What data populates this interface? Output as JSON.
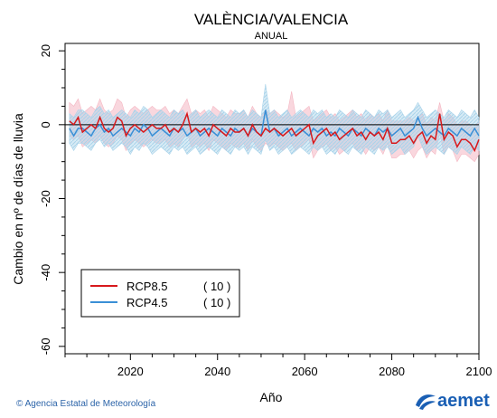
{
  "chart_data": {
    "type": "line",
    "title": "VALÈNCIA/VALENCIA",
    "subtitle": "ANUAL",
    "xlabel": "Año",
    "ylabel": "Cambio en nº de días de lluvia",
    "xlim": [
      2005,
      2100
    ],
    "ylim": [
      -62,
      22
    ],
    "xticks": [
      2020,
      2040,
      2060,
      2080,
      2100
    ],
    "yticks": [
      20,
      0,
      -20,
      -40,
      -60
    ],
    "zero_line": true,
    "legend_position": "lower-left",
    "series": [
      {
        "name": "RCP8.5",
        "count_label": "( 10 )",
        "color": "#d7191c",
        "band_color": "#f4b6c2",
        "x": [
          2006,
          2007,
          2008,
          2009,
          2010,
          2011,
          2012,
          2013,
          2014,
          2015,
          2016,
          2017,
          2018,
          2019,
          2020,
          2021,
          2022,
          2023,
          2024,
          2025,
          2026,
          2027,
          2028,
          2029,
          2030,
          2031,
          2032,
          2033,
          2034,
          2035,
          2036,
          2037,
          2038,
          2039,
          2040,
          2041,
          2042,
          2043,
          2044,
          2045,
          2046,
          2047,
          2048,
          2049,
          2050,
          2051,
          2052,
          2053,
          2054,
          2055,
          2056,
          2057,
          2058,
          2059,
          2060,
          2061,
          2062,
          2063,
          2064,
          2065,
          2066,
          2067,
          2068,
          2069,
          2070,
          2071,
          2072,
          2073,
          2074,
          2075,
          2076,
          2077,
          2078,
          2079,
          2080,
          2081,
          2082,
          2083,
          2084,
          2085,
          2086,
          2087,
          2088,
          2089,
          2090,
          2091,
          2092,
          2093,
          2094,
          2095,
          2096,
          2097,
          2098,
          2099,
          2100
        ],
        "y": [
          1,
          0,
          2,
          -2,
          -1,
          0,
          -1,
          2,
          -1,
          -2,
          -1,
          2,
          1,
          -3,
          -1,
          0,
          -1,
          -2,
          -1,
          0,
          -1,
          -1,
          0,
          -2,
          -1,
          -2,
          0,
          3,
          -2,
          -1,
          -2,
          -1,
          -3,
          0,
          -1,
          -2,
          -3,
          -1,
          -2,
          -2,
          -1,
          -3,
          0,
          -2,
          -3,
          -1,
          -2,
          -1,
          -2,
          -3,
          -2,
          -1,
          -3,
          -2,
          -1,
          0,
          -5,
          -3,
          -2,
          -1,
          -3,
          -2,
          -4,
          -3,
          -2,
          -1,
          -3,
          -2,
          -4,
          -2,
          -3,
          -2,
          -4,
          -1,
          -5,
          -5,
          -4,
          -4,
          -3,
          -5,
          -3,
          -2,
          -5,
          -3,
          -4,
          3,
          -4,
          -2,
          -3,
          -6,
          -4,
          -4,
          -5,
          -7,
          -4
        ],
        "y_min": [
          -3,
          -4,
          -3,
          -6,
          -5,
          -4,
          -5,
          -3,
          -5,
          -6,
          -5,
          -3,
          -4,
          -7,
          -5,
          -4,
          -5,
          -6,
          -5,
          -4,
          -5,
          -5,
          -4,
          -6,
          -5,
          -6,
          -4,
          -2,
          -6,
          -5,
          -6,
          -5,
          -7,
          -4,
          -5,
          -6,
          -7,
          -5,
          -6,
          -6,
          -5,
          -7,
          -4,
          -6,
          -7,
          -5,
          -6,
          -5,
          -6,
          -7,
          -6,
          -5,
          -7,
          -6,
          -5,
          -4,
          -9,
          -7,
          -6,
          -5,
          -7,
          -6,
          -8,
          -7,
          -6,
          -5,
          -7,
          -6,
          -8,
          -6,
          -7,
          -6,
          -8,
          -5,
          -9,
          -9,
          -8,
          -8,
          -7,
          -9,
          -7,
          -6,
          -9,
          -7,
          -8,
          -2,
          -8,
          -6,
          -7,
          -10,
          -8,
          -8,
          -9,
          -10,
          -8
        ],
        "y_max": [
          6,
          5,
          7,
          3,
          4,
          5,
          4,
          7,
          4,
          3,
          4,
          7,
          6,
          2,
          4,
          5,
          4,
          3,
          4,
          5,
          4,
          4,
          5,
          3,
          4,
          3,
          5,
          7,
          3,
          4,
          3,
          4,
          2,
          5,
          4,
          3,
          2,
          4,
          3,
          3,
          4,
          2,
          5,
          3,
          2,
          4,
          3,
          4,
          3,
          2,
          3,
          9,
          2,
          3,
          4,
          5,
          1,
          2,
          3,
          4,
          2,
          3,
          1,
          2,
          3,
          4,
          2,
          3,
          1,
          3,
          2,
          3,
          1,
          4,
          1,
          1,
          1,
          1,
          2,
          1,
          2,
          3,
          0,
          2,
          1,
          6,
          1,
          3,
          2,
          0,
          1,
          1,
          0,
          -1,
          1
        ]
      },
      {
        "name": "RCP4.5",
        "count_label": "( 10 )",
        "color": "#3a8fd6",
        "band_color": "#a9d3ea",
        "x": [
          2006,
          2007,
          2008,
          2009,
          2010,
          2011,
          2012,
          2013,
          2014,
          2015,
          2016,
          2017,
          2018,
          2019,
          2020,
          2021,
          2022,
          2023,
          2024,
          2025,
          2026,
          2027,
          2028,
          2029,
          2030,
          2031,
          2032,
          2033,
          2034,
          2035,
          2036,
          2037,
          2038,
          2039,
          2040,
          2041,
          2042,
          2043,
          2044,
          2045,
          2046,
          2047,
          2048,
          2049,
          2050,
          2051,
          2052,
          2053,
          2054,
          2055,
          2056,
          2057,
          2058,
          2059,
          2060,
          2061,
          2062,
          2063,
          2064,
          2065,
          2066,
          2067,
          2068,
          2069,
          2070,
          2071,
          2072,
          2073,
          2074,
          2075,
          2076,
          2077,
          2078,
          2079,
          2080,
          2081,
          2082,
          2083,
          2084,
          2085,
          2086,
          2087,
          2088,
          2089,
          2090,
          2091,
          2092,
          2093,
          2094,
          2095,
          2096,
          2097,
          2098,
          2099,
          2100
        ],
        "y": [
          -1,
          -3,
          -1,
          -1,
          -2,
          -3,
          -1,
          0,
          -2,
          -1,
          -3,
          -2,
          -1,
          -2,
          -3,
          -1,
          -2,
          0,
          -1,
          -3,
          -2,
          -1,
          -2,
          -3,
          -1,
          -2,
          -1,
          -3,
          -2,
          -1,
          -3,
          -2,
          -1,
          -2,
          -3,
          -1,
          -2,
          -3,
          -1,
          -2,
          -1,
          -3,
          -1,
          -2,
          -3,
          4,
          -2,
          -1,
          -3,
          -2,
          -1,
          -3,
          -2,
          -1,
          -2,
          -3,
          -1,
          -2,
          -1,
          -3,
          -2,
          -3,
          -1,
          -2,
          -3,
          -1,
          -2,
          -3,
          -1,
          -2,
          -3,
          -1,
          -2,
          -1,
          -3,
          -2,
          -1,
          -3,
          -2,
          -1,
          2,
          -1,
          -3,
          -2,
          -1,
          -2,
          -3,
          -1,
          -2,
          -3,
          -1,
          -2,
          -3,
          -1,
          -3
        ],
        "y_min": [
          -5,
          -7,
          -5,
          -5,
          -6,
          -7,
          -5,
          -4,
          -6,
          -5,
          -7,
          -6,
          -5,
          -6,
          -8,
          -6,
          -7,
          -5,
          -6,
          -8,
          -7,
          -6,
          -7,
          -8,
          -6,
          -7,
          -6,
          -8,
          -7,
          -6,
          -8,
          -7,
          -6,
          -7,
          -8,
          -6,
          -7,
          -8,
          -6,
          -7,
          -6,
          -8,
          -6,
          -7,
          -8,
          -4,
          -7,
          -6,
          -8,
          -7,
          -6,
          -8,
          -7,
          -6,
          -7,
          -8,
          -6,
          -7,
          -6,
          -8,
          -7,
          -8,
          -6,
          -7,
          -8,
          -6,
          -7,
          -8,
          -6,
          -7,
          -8,
          -6,
          -7,
          -6,
          -8,
          -7,
          -6,
          -8,
          -7,
          -6,
          -3,
          -6,
          -8,
          -7,
          -6,
          -7,
          -8,
          -6,
          -7,
          -8,
          -6,
          -7,
          -8,
          -6,
          -7
        ],
        "y_max": [
          3,
          2,
          4,
          4,
          3,
          2,
          4,
          5,
          3,
          4,
          2,
          3,
          4,
          3,
          2,
          4,
          3,
          5,
          4,
          2,
          3,
          4,
          3,
          2,
          4,
          3,
          4,
          2,
          3,
          4,
          2,
          3,
          4,
          3,
          2,
          4,
          3,
          2,
          4,
          3,
          4,
          2,
          4,
          3,
          2,
          11,
          3,
          4,
          2,
          3,
          4,
          2,
          3,
          4,
          3,
          2,
          4,
          3,
          4,
          2,
          3,
          2,
          4,
          3,
          2,
          4,
          3,
          2,
          4,
          3,
          2,
          4,
          3,
          4,
          2,
          3,
          4,
          2,
          3,
          4,
          6,
          4,
          2,
          3,
          4,
          3,
          2,
          4,
          3,
          2,
          4,
          3,
          2,
          4,
          2
        ]
      }
    ]
  },
  "footer": {
    "credit": "Agencia Estatal de Meteorología",
    "brand": "aemet"
  }
}
